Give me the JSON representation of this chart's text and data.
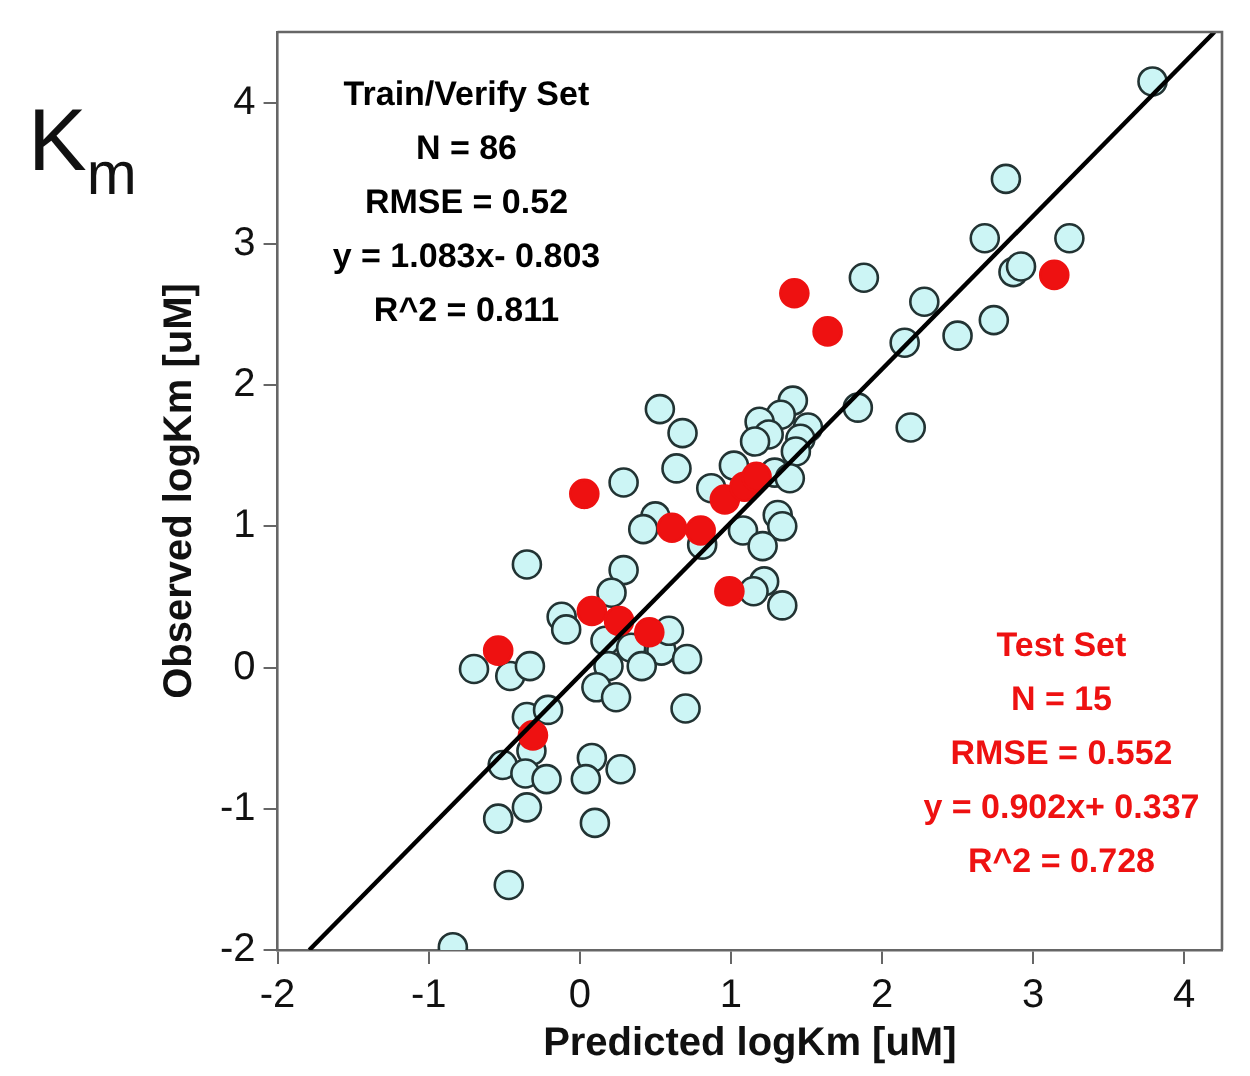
{
  "chart_data": {
    "type": "scatter",
    "title": "K$_{m}$",
    "xlabel": "Predicted logKm [uM]",
    "ylabel": "Observed logKm [uM]",
    "xlim": [
      -2,
      4.25
    ],
    "ylim": [
      -2,
      4.5
    ],
    "xticks": [
      -2,
      -1,
      0,
      1,
      2,
      3,
      4
    ],
    "yticks": [
      -2,
      -1,
      0,
      1,
      2,
      3,
      4
    ],
    "grid": false,
    "legend": false,
    "marker": "circle",
    "annotations": [
      "Train/Verify Set\nN = 86\nRMSE = 0.52\ny = 1.083x- 0.803\nR^2 = 0.811",
      "Test Set\nN = 15\nRMSE = 0.552\ny = 0.902x+ 0.337\nR^2 = 0.728"
    ],
    "series": [
      {
        "color": "#ccf5f5",
        "x": [
          3.79,
          2.82,
          2.68,
          3.24,
          2.87,
          2.92,
          1.88,
          2.28,
          2.15,
          2.5,
          2.74,
          2.19,
          1.84,
          0.53,
          0.68,
          0.29,
          0.64,
          1.41,
          1.33,
          1.19,
          1.51,
          1.25,
          1.46,
          1.16,
          1.43,
          1.02,
          0.87,
          1.29,
          1.39,
          0.5,
          0.42,
          0.81,
          1.08,
          1.31,
          1.34,
          1.21,
          -0.35,
          0.29,
          0.21,
          1.22,
          1.15,
          1.34,
          -0.12,
          -0.09,
          0.17,
          0.34,
          0.54,
          0.59,
          0.71,
          0.19,
          0.41,
          -0.7,
          -0.46,
          -0.33,
          0.11,
          0.24,
          0.7,
          -0.35,
          -0.21,
          -0.32,
          -0.51,
          -0.36,
          -0.22,
          0.08,
          0.04,
          0.27,
          -0.54,
          -0.35,
          0.1,
          -0.47,
          -0.84
        ],
        "values": [
          4.15,
          3.46,
          3.04,
          3.04,
          2.8,
          2.84,
          2.76,
          2.59,
          2.3,
          2.35,
          2.46,
          1.7,
          1.84,
          1.83,
          1.66,
          1.31,
          1.41,
          1.89,
          1.79,
          1.74,
          1.7,
          1.65,
          1.62,
          1.6,
          1.53,
          1.43,
          1.27,
          1.38,
          1.34,
          1.07,
          0.98,
          0.87,
          0.97,
          1.08,
          1.0,
          0.86,
          0.73,
          0.69,
          0.53,
          0.61,
          0.54,
          0.44,
          0.36,
          0.27,
          0.19,
          0.14,
          0.12,
          0.26,
          0.06,
          0.01,
          0.01,
          -0.01,
          -0.06,
          0.01,
          -0.14,
          -0.21,
          -0.29,
          -0.35,
          -0.3,
          -0.59,
          -0.69,
          -0.75,
          -0.79,
          -0.64,
          -0.79,
          -0.72,
          -1.07,
          -0.99,
          -1.1,
          -1.54,
          -1.98
        ]
      },
      {
        "color": "#ee1111",
        "x": [
          1.42,
          1.64,
          3.14,
          0.03,
          0.61,
          0.8,
          0.96,
          1.09,
          1.17,
          0.99,
          0.08,
          0.26,
          0.46,
          -0.54,
          -0.31
        ],
        "values": [
          2.65,
          2.38,
          2.78,
          1.23,
          0.99,
          0.97,
          1.19,
          1.28,
          1.35,
          0.54,
          0.4,
          0.33,
          0.25,
          0.12,
          -0.48
        ]
      },
      {
        "type": "line",
        "color": "#000000",
        "marker": "none",
        "x": [
          -1.79,
          4.2
        ],
        "values": [
          -2,
          4.5
        ]
      }
    ]
  }
}
